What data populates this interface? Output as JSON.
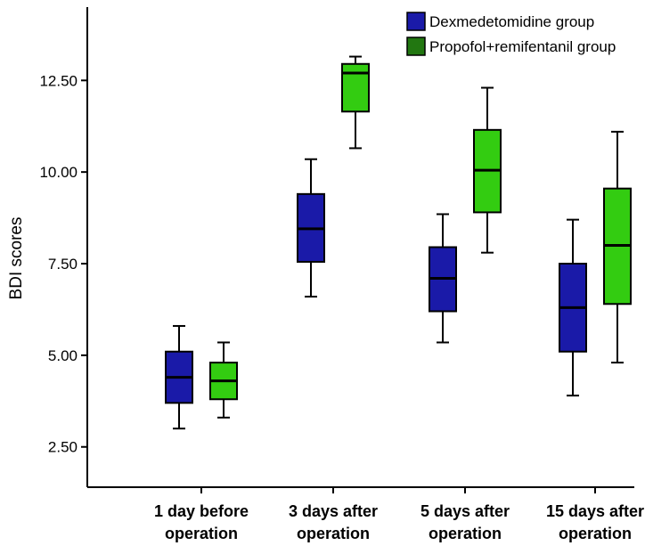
{
  "chart_data": {
    "type": "boxplot",
    "ylabel": "BDI scores",
    "xlabel": "",
    "ylim": [
      1.4,
      14.5
    ],
    "yticks": [
      "2.50",
      "5.00",
      "7.50",
      "10.00",
      "12.50"
    ],
    "ytick_values": [
      2.5,
      5.0,
      7.5,
      10.0,
      12.5
    ],
    "categories": [
      [
        "1 day before",
        "operation"
      ],
      [
        "3 days after",
        "operation"
      ],
      [
        "5 days after",
        "operation"
      ],
      [
        "15 days after",
        "operation"
      ]
    ],
    "legend_position": "top-right",
    "series": [
      {
        "name": "Dexmedetomidine group",
        "color": "#1a1aa8",
        "legend_color": "#1a1aa8",
        "boxes": [
          {
            "min": 3.0,
            "q1": 3.7,
            "median": 4.4,
            "q3": 5.1,
            "max": 5.8
          },
          {
            "min": 6.6,
            "q1": 7.55,
            "median": 8.45,
            "q3": 9.4,
            "max": 10.35
          },
          {
            "min": 5.35,
            "q1": 6.2,
            "median": 7.1,
            "q3": 7.95,
            "max": 8.85
          },
          {
            "min": 3.9,
            "q1": 5.1,
            "median": 6.3,
            "q3": 7.5,
            "max": 8.7
          }
        ]
      },
      {
        "name": "Propofol+remifentanil group",
        "color": "#33cc11",
        "legend_color": "#227711",
        "boxes": [
          {
            "min": 3.3,
            "q1": 3.8,
            "median": 4.3,
            "q3": 4.8,
            "max": 5.35
          },
          {
            "min": 10.65,
            "q1": 11.65,
            "median": 12.7,
            "q3": 12.95,
            "max": 13.15
          },
          {
            "min": 7.8,
            "q1": 8.9,
            "median": 10.05,
            "q3": 11.15,
            "max": 12.3
          },
          {
            "min": 4.8,
            "q1": 6.4,
            "median": 8.0,
            "q3": 9.55,
            "max": 11.1
          }
        ]
      }
    ]
  }
}
